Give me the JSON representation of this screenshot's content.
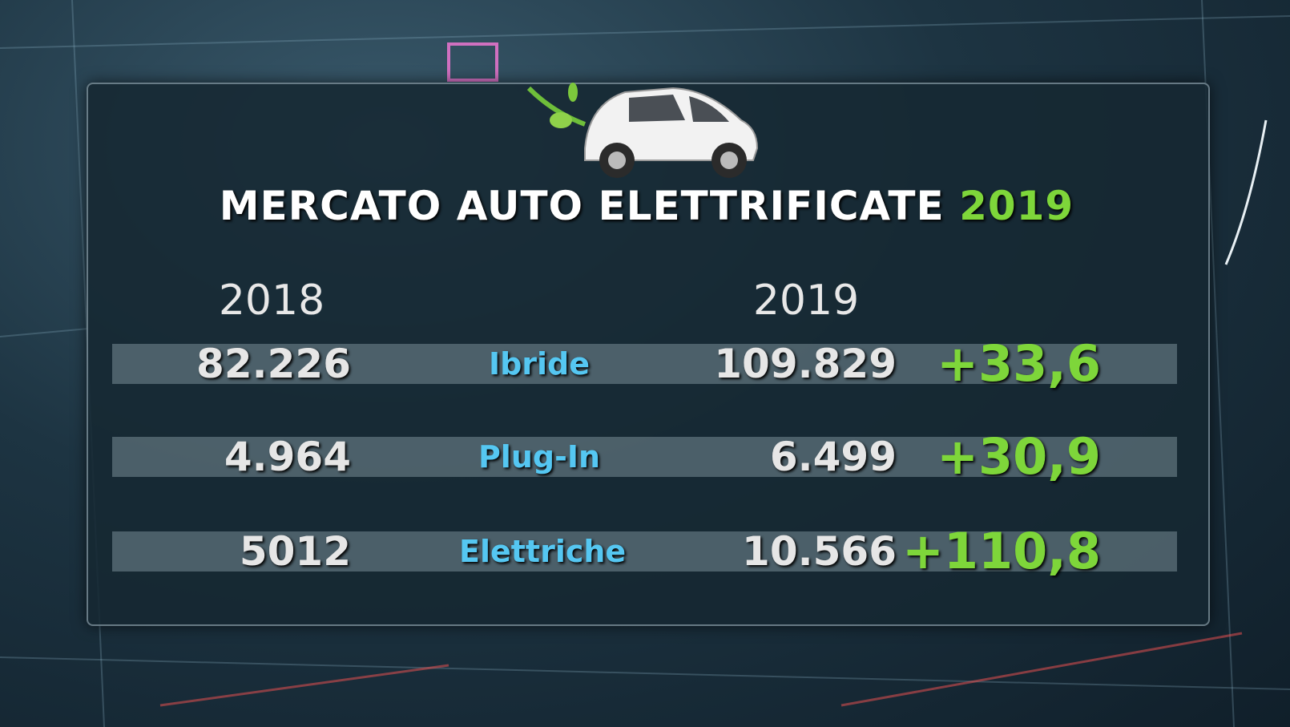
{
  "header": {
    "title": "MERCATO AUTO ELETTRIFICATE",
    "year": "2019"
  },
  "columns": [
    "2018",
    "2019"
  ],
  "rows": [
    [
      "82.226",
      "Ibride",
      "109.829",
      "+33,6"
    ],
    [
      "4.964",
      "Plug-In",
      "6.499",
      "+30,9"
    ],
    [
      "5012",
      "Elettriche",
      "10.566",
      "+110,8"
    ]
  ]
}
